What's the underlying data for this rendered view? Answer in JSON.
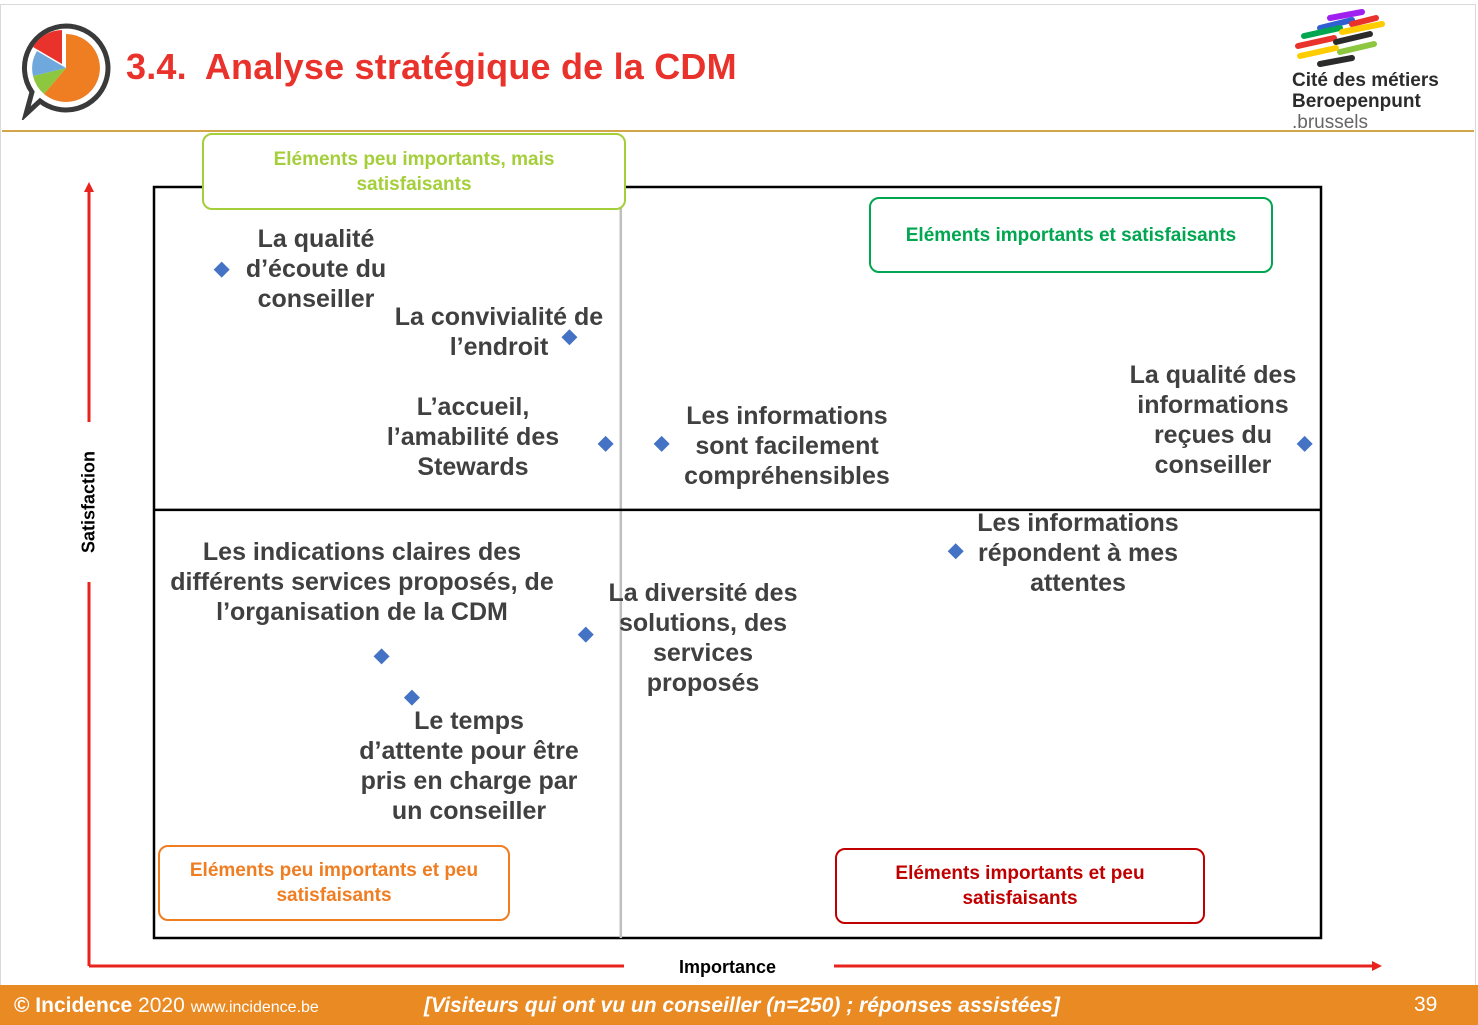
{
  "header": {
    "number": "3.4.",
    "title": "Analyse stratégique de la CDM"
  },
  "logo": {
    "line1": "Cité des métiers",
    "line2": "Beroepenpunt",
    "line3": ".brussels"
  },
  "colors": {
    "title_red": "#e8322b",
    "footer_orange": "#e98a23",
    "marker_blue": "#4472c4",
    "axis_red": "#e8221c",
    "light_green": "#a4cf3a",
    "green": "#00a650",
    "orange": "#ef7d22",
    "red": "#c00000"
  },
  "chart_data": {
    "type": "scatter",
    "xlabel": "Importance",
    "ylabel": "Satisfaction",
    "grid": false,
    "quadrant_divider": {
      "x": 0.4,
      "y": 0.57
    },
    "quadrants": [
      {
        "label": "Eléments peu importants, mais satisfaisants",
        "position": "top-left",
        "color": "#a4cf3a"
      },
      {
        "label": "Eléments importants et satisfaisants",
        "position": "top-right",
        "color": "#00a650"
      },
      {
        "label": "Eléments peu importants et peu satisfaisants",
        "position": "bottom-left",
        "color": "#ef7d22"
      },
      {
        "label": "Eléments importants et peu satisfaisants",
        "position": "bottom-right",
        "color": "#c00000"
      }
    ],
    "points": [
      {
        "label": "La qualité\nd’écoute du\nconseiller",
        "x": 0.058,
        "y": 0.89
      },
      {
        "label": "La convivialité de\nl’endroit",
        "x": 0.356,
        "y": 0.8
      },
      {
        "label": "L’accueil,\nl’amabilité des\nStewards",
        "x": 0.387,
        "y": 0.658
      },
      {
        "label": "Les informations\nsont facilement\ncompréhensibles",
        "x": 0.435,
        "y": 0.658
      },
      {
        "label": "La qualité des\ninformations\nreçues du\nconseiller",
        "x": 0.986,
        "y": 0.658
      },
      {
        "label": "Les informations\nrépondent à mes\nattentes",
        "x": 0.687,
        "y": 0.515
      },
      {
        "label": "Les indications claires des\ndifférents services proposés, de\nl’organisation de la CDM",
        "x": 0.195,
        "y": 0.375
      },
      {
        "label": "La diversité des\nsolutions, des\nservices\nproposés",
        "x": 0.37,
        "y": 0.404
      },
      {
        "label": "Le temps\nd’attente pour être\npris en charge par\nun conseiller",
        "x": 0.221,
        "y": 0.32
      }
    ]
  },
  "footer": {
    "copyright": "© Incidence",
    "year": "2020",
    "url": "www.incidence.be",
    "note": "[Visiteurs qui ont vu un conseiller (n=250) ; réponses assistées]",
    "page": "39"
  }
}
